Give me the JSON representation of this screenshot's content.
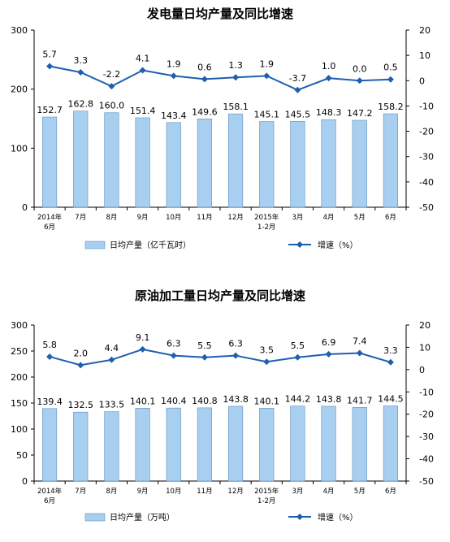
{
  "chart_data": [
    {
      "type": "bar",
      "title": "发电量日均产量及同比增速",
      "categories": [
        [
          "2014年",
          "6月"
        ],
        [
          "7月"
        ],
        [
          "8月"
        ],
        [
          "9月"
        ],
        [
          "10月"
        ],
        [
          "11月"
        ],
        [
          "12月"
        ],
        [
          "2015年",
          "1-2月"
        ],
        [
          "3月"
        ],
        [
          "4月"
        ],
        [
          "5月"
        ],
        [
          "6月"
        ]
      ],
      "series": [
        {
          "name": "日均产量（亿千瓦时）",
          "type": "bar",
          "axis": "left",
          "values": [
            152.7,
            162.8,
            160.0,
            151.4,
            143.4,
            149.6,
            158.1,
            145.1,
            145.5,
            148.3,
            147.2,
            158.2
          ],
          "labels": [
            "152.7",
            "162.8",
            "160.0",
            "151.4",
            "143.4",
            "149.6",
            "158.1",
            "145.1",
            "145.5",
            "148.3",
            "147.2",
            "158.2"
          ]
        },
        {
          "name": "增速（%）",
          "type": "line",
          "axis": "right",
          "values": [
            5.7,
            3.3,
            -2.2,
            4.1,
            1.9,
            0.6,
            1.3,
            1.9,
            -3.7,
            1.0,
            0.0,
            0.5
          ],
          "labels": [
            "5.7",
            "3.3",
            "-2.2",
            "4.1",
            "1.9",
            "0.6",
            "1.3",
            "1.9",
            "-3.7",
            "1.0",
            "0.0",
            "0.5"
          ]
        }
      ],
      "yleft": {
        "lim": [
          0,
          300
        ],
        "ticks": [
          "0",
          "100",
          "200",
          "300"
        ]
      },
      "yright": {
        "lim": [
          -50,
          20
        ],
        "ticks": [
          "20",
          "10",
          "0",
          "-10",
          "-20",
          "-30",
          "-40",
          "-50"
        ]
      },
      "bar_color": "#a8cef0",
      "line_color": "#1f5fae",
      "legend_position": "bottom"
    },
    {
      "type": "bar",
      "title": "原油加工量日均产量及同比增速",
      "categories": [
        [
          "2014年",
          "6月"
        ],
        [
          "7月"
        ],
        [
          "8月"
        ],
        [
          "9月"
        ],
        [
          "10月"
        ],
        [
          "11月"
        ],
        [
          "12月"
        ],
        [
          "2015年",
          "1-2月"
        ],
        [
          "3月"
        ],
        [
          "4月"
        ],
        [
          "5月"
        ],
        [
          "6月"
        ]
      ],
      "series": [
        {
          "name": "日均产量（万吨）",
          "type": "bar",
          "axis": "left",
          "values": [
            139.4,
            132.5,
            133.5,
            140.1,
            140.4,
            140.8,
            143.8,
            140.1,
            144.2,
            143.8,
            141.7,
            144.5
          ],
          "labels": [
            "139.4",
            "132.5",
            "133.5",
            "140.1",
            "140.4",
            "140.8",
            "143.8",
            "140.1",
            "144.2",
            "143.8",
            "141.7",
            "144.5"
          ]
        },
        {
          "name": "增速（%）",
          "type": "line",
          "axis": "right",
          "values": [
            5.8,
            2.0,
            4.4,
            9.1,
            6.3,
            5.5,
            6.3,
            3.5,
            5.5,
            6.9,
            7.4,
            3.3
          ],
          "labels": [
            "5.8",
            "2.0",
            "4.4",
            "9.1",
            "6.3",
            "5.5",
            "6.3",
            "3.5",
            "5.5",
            "6.9",
            "7.4",
            "3.3"
          ]
        }
      ],
      "yleft": {
        "lim": [
          0,
          300
        ],
        "ticks": [
          "0",
          "50",
          "100",
          "150",
          "200",
          "250",
          "300"
        ]
      },
      "yright": {
        "lim": [
          -50,
          20
        ],
        "ticks": [
          "20",
          "10",
          "0",
          "-10",
          "-20",
          "-30",
          "-40",
          "-50"
        ]
      },
      "bar_color": "#a8cef0",
      "line_color": "#1f5fae",
      "legend_position": "bottom"
    }
  ]
}
